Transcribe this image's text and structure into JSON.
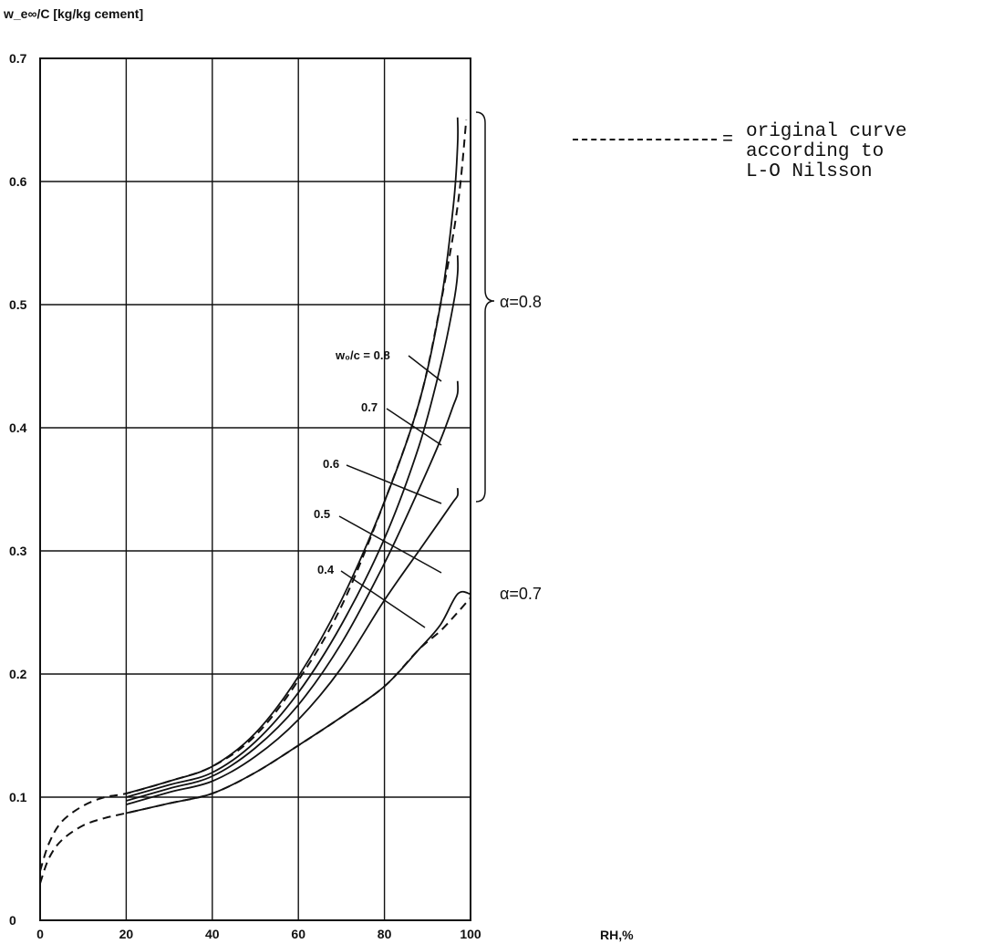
{
  "chart_data": {
    "type": "line",
    "ylabel": "w_e∞/C [kg/kg cement]",
    "xlabel": "RH,%",
    "x_ticks": [
      "0",
      "20",
      "40",
      "60",
      "80",
      "100"
    ],
    "y_ticks": [
      "0",
      "0.1",
      "0.2",
      "0.3",
      "0.4",
      "0.5",
      "0.6",
      "0.7"
    ],
    "xlim": [
      0,
      100
    ],
    "ylim": [
      0,
      0.7
    ],
    "grid": true,
    "series": [
      {
        "name": "0.8",
        "style": "solid",
        "x": [
          20,
          30,
          40,
          50,
          60,
          70,
          80,
          88,
          93,
          96,
          97,
          97
        ],
        "y": [
          0.103,
          0.113,
          0.125,
          0.152,
          0.198,
          0.26,
          0.34,
          0.42,
          0.5,
          0.58,
          0.63,
          0.652
        ]
      },
      {
        "name": "0.7",
        "style": "solid",
        "x": [
          20,
          30,
          40,
          50,
          60,
          70,
          80,
          88,
          93,
          96,
          97,
          97
        ],
        "y": [
          0.1,
          0.11,
          0.12,
          0.145,
          0.185,
          0.24,
          0.31,
          0.385,
          0.45,
          0.5,
          0.525,
          0.54
        ]
      },
      {
        "name": "0.6",
        "style": "solid",
        "x": [
          20,
          30,
          40,
          50,
          60,
          70,
          80,
          88,
          93,
          96,
          97,
          97
        ],
        "y": [
          0.097,
          0.107,
          0.117,
          0.14,
          0.175,
          0.225,
          0.29,
          0.35,
          0.39,
          0.418,
          0.428,
          0.438
        ]
      },
      {
        "name": "0.5",
        "style": "solid",
        "x": [
          20,
          30,
          40,
          50,
          60,
          70,
          80,
          88,
          93,
          96,
          97,
          97
        ],
        "y": [
          0.094,
          0.104,
          0.113,
          0.133,
          0.163,
          0.205,
          0.26,
          0.3,
          0.325,
          0.34,
          0.345,
          0.351
        ]
      },
      {
        "name": "0.4",
        "style": "solid",
        "x": [
          20,
          30,
          40,
          50,
          60,
          70,
          80,
          88,
          93,
          97,
          100
        ],
        "y": [
          0.087,
          0.095,
          0.103,
          0.12,
          0.142,
          0.165,
          0.19,
          0.22,
          0.24,
          0.265,
          0.265
        ]
      },
      {
        "name": "",
        "style": "dashed",
        "x": [
          0,
          2,
          5,
          10,
          15,
          20,
          30,
          40,
          50,
          60,
          70,
          80,
          88,
          93,
          97,
          99
        ],
        "y": [
          0.04,
          0.062,
          0.08,
          0.093,
          0.1,
          0.103,
          0.113,
          0.125,
          0.15,
          0.195,
          0.255,
          0.34,
          0.42,
          0.5,
          0.58,
          0.65
        ]
      },
      {
        "name": "",
        "style": "dashed",
        "x": [
          0,
          2,
          5,
          10,
          15,
          20,
          30,
          40,
          50,
          60,
          70,
          80,
          88,
          93,
          97,
          100
        ],
        "y": [
          0.03,
          0.05,
          0.065,
          0.077,
          0.083,
          0.087,
          0.095,
          0.103,
          0.12,
          0.142,
          0.165,
          0.19,
          0.22,
          0.235,
          0.25,
          0.262
        ]
      }
    ],
    "curve_labels": [
      "w₀/c = 0.8",
      "0.7",
      "0.6",
      "0.5",
      "0.4"
    ],
    "annotations": [
      "α=0.8",
      "α=0.7"
    ],
    "legend": {
      "placement": "top-right",
      "symbol": "dashed-line",
      "text": "original curve\naccording to\nL-O Nilsson"
    }
  }
}
